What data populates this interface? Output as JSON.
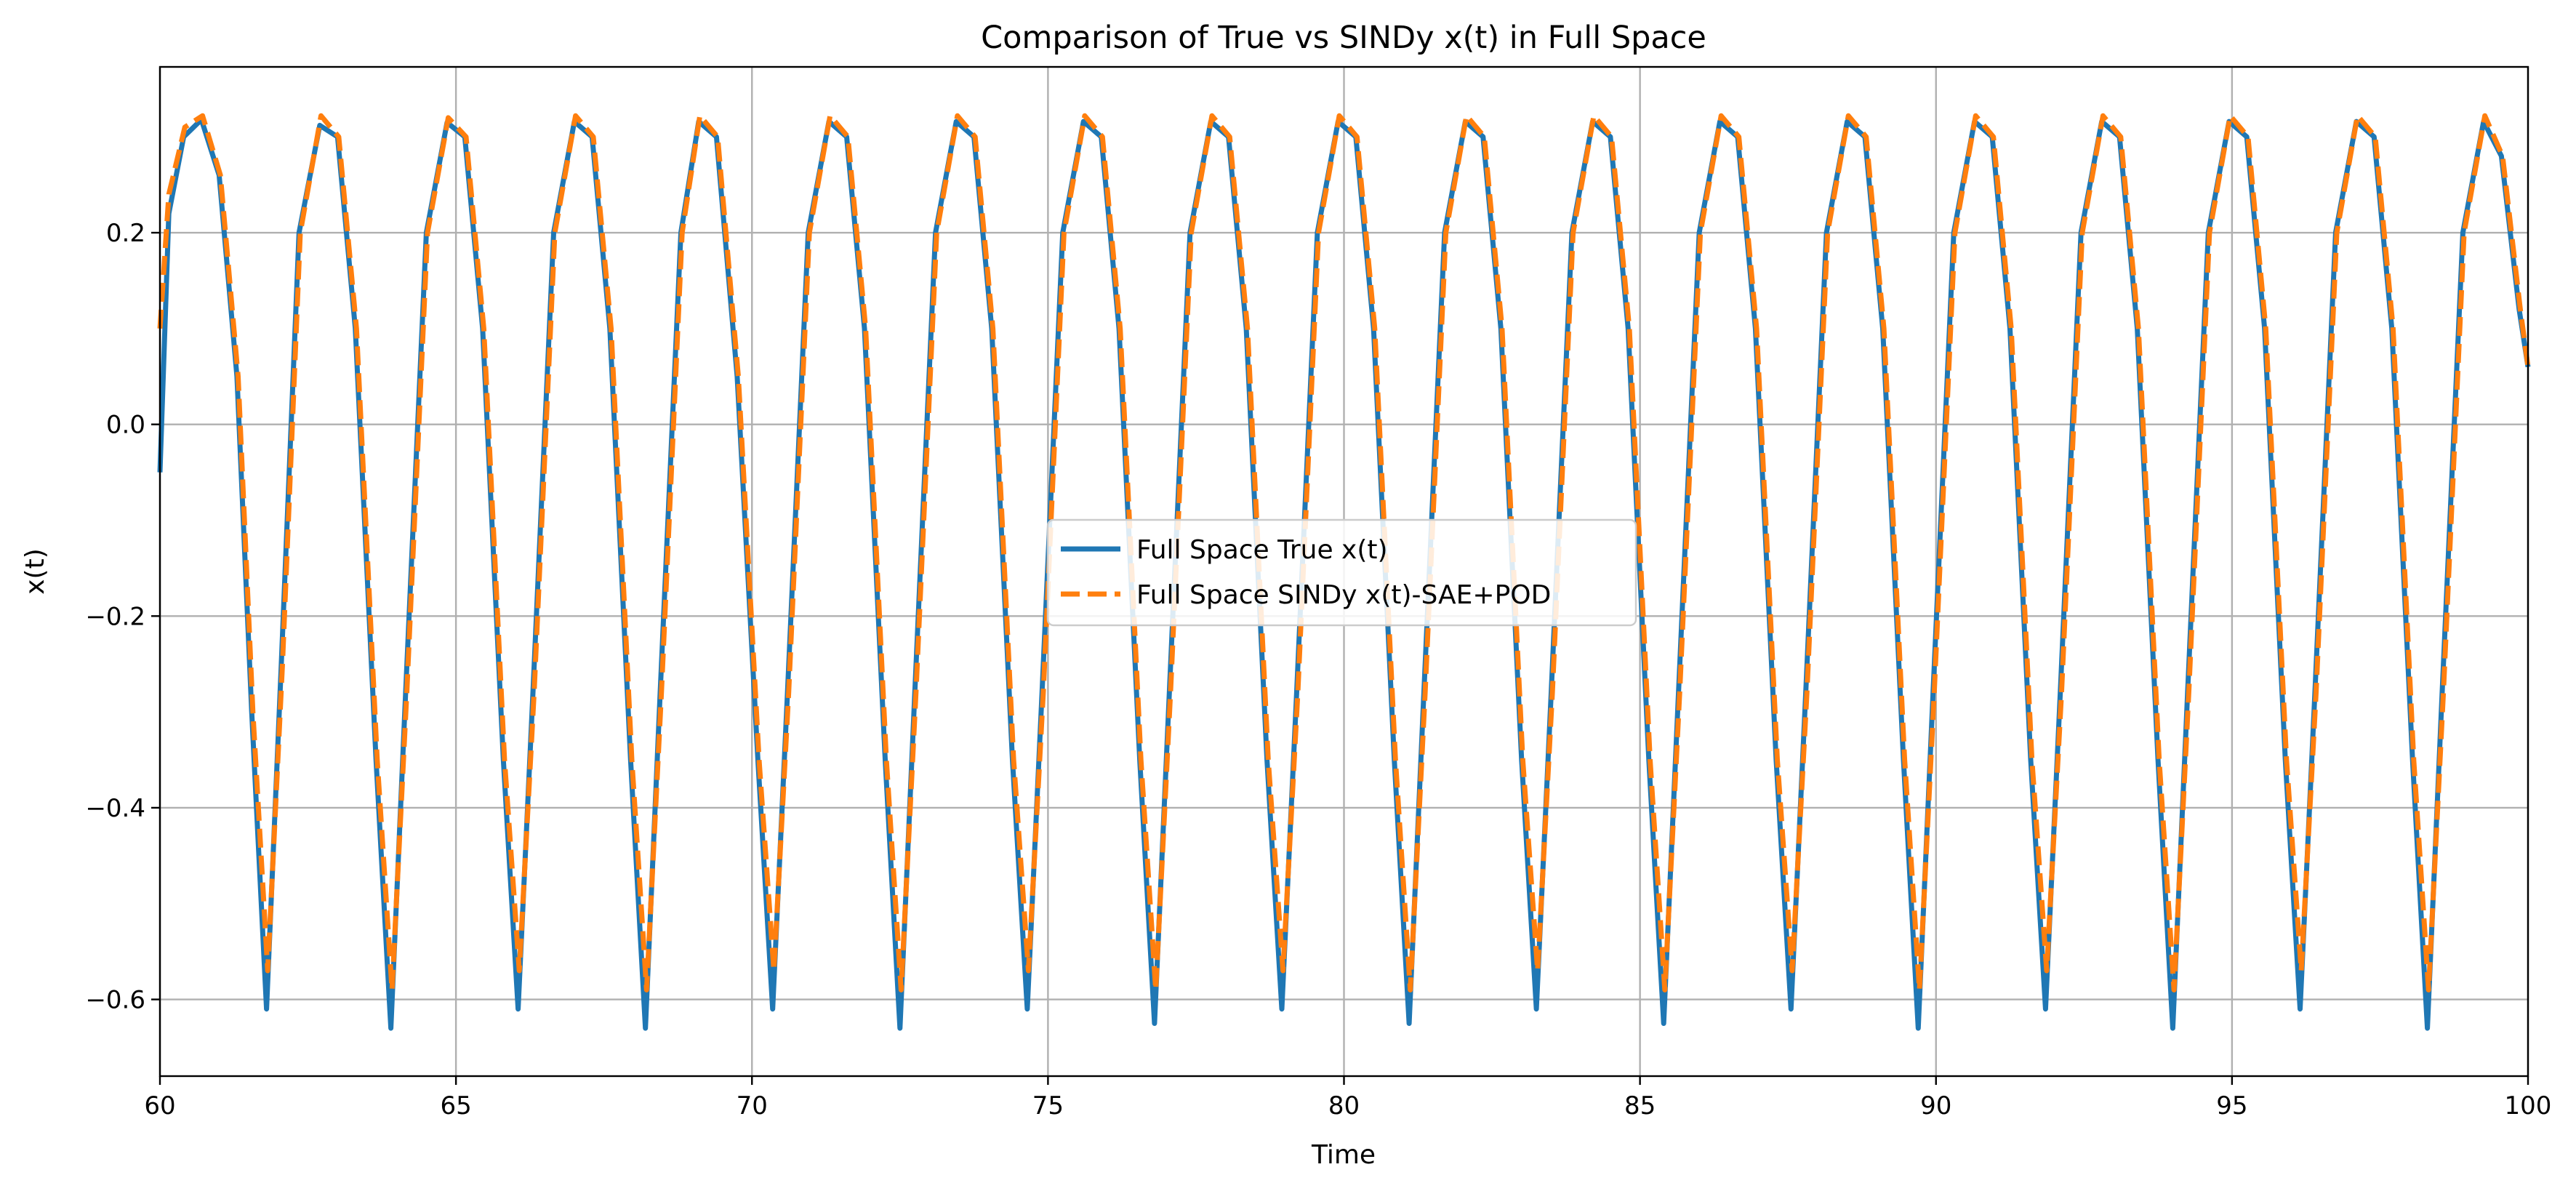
{
  "chart_data": {
    "type": "line",
    "title": "Comparison of True vs SINDy x(t) in Full Space",
    "xlabel": "Time",
    "ylabel": "x(t)",
    "xlim": [
      60,
      100
    ],
    "ylim": [
      -0.68,
      0.373
    ],
    "xticks": [
      60,
      65,
      70,
      75,
      80,
      85,
      90,
      95,
      100
    ],
    "xtick_labels": [
      "60",
      "65",
      "70",
      "75",
      "80",
      "85",
      "90",
      "95",
      "100"
    ],
    "yticks": [
      -0.6,
      -0.4,
      -0.2,
      0.0,
      0.2
    ],
    "ytick_labels": [
      "−0.6",
      "−0.4",
      "−0.2",
      "0.0",
      "0.2"
    ],
    "grid": true,
    "legend_position": "center",
    "series": [
      {
        "name": "Full Space True x(t)",
        "color": "#1f77b4",
        "style": "solid",
        "x": [
          60.0,
          60.15,
          60.4,
          60.7,
          61.0,
          61.3,
          61.55,
          61.8,
          62.05,
          62.35,
          62.7,
          63.0,
          63.3,
          63.65,
          63.9,
          64.15,
          64.5,
          64.85,
          65.15,
          65.45,
          65.8,
          66.05,
          66.3,
          66.65,
          67.0,
          67.3,
          67.6,
          67.95,
          68.2,
          68.45,
          68.8,
          69.1,
          69.4,
          69.75,
          70.1,
          70.35,
          70.6,
          70.95,
          71.3,
          71.6,
          71.9,
          72.25,
          72.5,
          72.75,
          73.1,
          73.45,
          73.75,
          74.05,
          74.4,
          74.65,
          74.9,
          75.25,
          75.6,
          75.9,
          76.2,
          76.55,
          76.8,
          77.05,
          77.4,
          77.75,
          78.05,
          78.35,
          78.7,
          78.95,
          79.2,
          79.55,
          79.9,
          80.2,
          80.5,
          80.85,
          81.1,
          81.35,
          81.7,
          82.05,
          82.35,
          82.65,
          83.0,
          83.25,
          83.5,
          83.85,
          84.2,
          84.5,
          84.8,
          85.15,
          85.4,
          85.65,
          86.0,
          86.35,
          86.65,
          86.95,
          87.3,
          87.55,
          87.8,
          88.15,
          88.5,
          88.8,
          89.1,
          89.45,
          89.7,
          89.95,
          90.3,
          90.65,
          90.95,
          91.25,
          91.6,
          91.85,
          92.1,
          92.45,
          92.8,
          93.1,
          93.4,
          93.75,
          94.0,
          94.25,
          94.6,
          94.95,
          95.25,
          95.55,
          95.9,
          96.15,
          96.4,
          96.75,
          97.1,
          97.4,
          97.7,
          98.05,
          98.3,
          98.55,
          98.9,
          99.25,
          99.55,
          99.85,
          100.0
        ],
        "y": [
          -0.05,
          0.22,
          0.3,
          0.318,
          0.26,
          0.05,
          -0.3,
          -0.61,
          -0.25,
          0.2,
          0.312,
          0.3,
          0.1,
          -0.35,
          -0.63,
          -0.28,
          0.2,
          0.315,
          0.3,
          0.1,
          -0.35,
          -0.61,
          -0.28,
          0.2,
          0.316,
          0.3,
          0.1,
          -0.35,
          -0.63,
          -0.28,
          0.2,
          0.316,
          0.3,
          0.05,
          -0.35,
          -0.61,
          -0.28,
          0.2,
          0.316,
          0.3,
          0.1,
          -0.35,
          -0.63,
          -0.28,
          0.2,
          0.316,
          0.3,
          0.1,
          -0.35,
          -0.61,
          -0.28,
          0.2,
          0.316,
          0.3,
          0.1,
          -0.35,
          -0.625,
          -0.28,
          0.2,
          0.316,
          0.3,
          0.1,
          -0.35,
          -0.61,
          -0.28,
          0.2,
          0.316,
          0.3,
          0.1,
          -0.35,
          -0.625,
          -0.28,
          0.2,
          0.316,
          0.3,
          0.1,
          -0.35,
          -0.61,
          -0.28,
          0.2,
          0.316,
          0.3,
          0.1,
          -0.35,
          -0.625,
          -0.28,
          0.2,
          0.316,
          0.3,
          0.1,
          -0.35,
          -0.61,
          -0.28,
          0.2,
          0.316,
          0.3,
          0.1,
          -0.35,
          -0.63,
          -0.28,
          0.2,
          0.316,
          0.3,
          0.1,
          -0.35,
          -0.61,
          -0.28,
          0.2,
          0.316,
          0.3,
          0.1,
          -0.35,
          -0.63,
          -0.28,
          0.2,
          0.316,
          0.3,
          0.1,
          -0.35,
          -0.61,
          -0.28,
          0.2,
          0.316,
          0.3,
          0.1,
          -0.35,
          -0.63,
          -0.28,
          0.2,
          0.316,
          0.28,
          0.12,
          0.06
        ]
      },
      {
        "name": "Full Space SINDy x(t)-SAE+POD",
        "color": "#ff7f0e",
        "style": "dashed",
        "x": [
          60.0,
          60.15,
          60.42,
          60.72,
          61.02,
          61.32,
          61.57,
          61.82,
          62.07,
          62.37,
          62.72,
          63.02,
          63.32,
          63.67,
          63.92,
          64.17,
          64.52,
          64.87,
          65.17,
          65.47,
          65.82,
          66.07,
          66.32,
          66.67,
          67.02,
          67.32,
          67.62,
          67.97,
          68.22,
          68.47,
          68.82,
          69.12,
          69.42,
          69.77,
          70.12,
          70.37,
          70.62,
          70.97,
          71.32,
          71.62,
          71.92,
          72.27,
          72.52,
          72.77,
          73.12,
          73.47,
          73.77,
          74.07,
          74.42,
          74.67,
          74.92,
          75.27,
          75.62,
          75.92,
          76.22,
          76.57,
          76.82,
          77.07,
          77.42,
          77.77,
          78.07,
          78.37,
          78.72,
          78.97,
          79.22,
          79.57,
          79.92,
          80.22,
          80.52,
          80.87,
          81.12,
          81.37,
          81.72,
          82.07,
          82.37,
          82.67,
          83.02,
          83.27,
          83.52,
          83.87,
          84.22,
          84.52,
          84.82,
          85.17,
          85.42,
          85.67,
          86.02,
          86.37,
          86.67,
          86.97,
          87.32,
          87.57,
          87.82,
          88.17,
          88.52,
          88.82,
          89.12,
          89.47,
          89.72,
          89.97,
          90.32,
          90.67,
          90.97,
          91.27,
          91.62,
          91.87,
          92.12,
          92.47,
          92.82,
          93.12,
          93.42,
          93.77,
          94.02,
          94.27,
          94.62,
          94.97,
          95.27,
          95.57,
          95.92,
          96.17,
          96.42,
          96.77,
          97.12,
          97.42,
          97.72,
          98.07,
          98.32,
          98.57,
          98.92,
          99.27,
          99.57,
          99.87,
          100.0
        ],
        "y": [
          0.1,
          0.24,
          0.31,
          0.322,
          0.26,
          0.05,
          -0.3,
          -0.57,
          -0.25,
          0.2,
          0.322,
          0.3,
          0.1,
          -0.35,
          -0.59,
          -0.28,
          0.2,
          0.32,
          0.3,
          0.1,
          -0.35,
          -0.57,
          -0.28,
          0.2,
          0.322,
          0.3,
          0.1,
          -0.35,
          -0.59,
          -0.28,
          0.2,
          0.322,
          0.3,
          0.05,
          -0.35,
          -0.57,
          -0.28,
          0.2,
          0.322,
          0.3,
          0.1,
          -0.35,
          -0.59,
          -0.28,
          0.2,
          0.322,
          0.3,
          0.1,
          -0.35,
          -0.57,
          -0.28,
          0.2,
          0.322,
          0.3,
          0.1,
          -0.35,
          -0.59,
          -0.28,
          0.2,
          0.322,
          0.3,
          0.1,
          -0.35,
          -0.57,
          -0.28,
          0.2,
          0.322,
          0.3,
          0.1,
          -0.35,
          -0.59,
          -0.28,
          0.2,
          0.322,
          0.3,
          0.1,
          -0.35,
          -0.57,
          -0.28,
          0.2,
          0.322,
          0.3,
          0.1,
          -0.35,
          -0.59,
          -0.28,
          0.2,
          0.322,
          0.3,
          0.1,
          -0.35,
          -0.57,
          -0.28,
          0.2,
          0.322,
          0.3,
          0.1,
          -0.35,
          -0.59,
          -0.28,
          0.2,
          0.322,
          0.3,
          0.1,
          -0.35,
          -0.57,
          -0.28,
          0.2,
          0.322,
          0.3,
          0.1,
          -0.35,
          -0.59,
          -0.28,
          0.2,
          0.322,
          0.3,
          0.1,
          -0.35,
          -0.57,
          -0.28,
          0.2,
          0.322,
          0.3,
          0.1,
          -0.35,
          -0.59,
          -0.28,
          0.2,
          0.322,
          0.28,
          0.12,
          0.06
        ]
      }
    ]
  }
}
